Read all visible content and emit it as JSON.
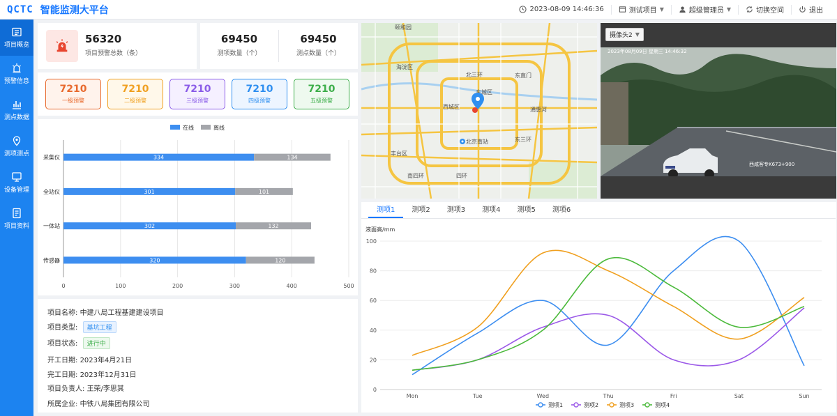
{
  "app": {
    "logo": "QCTC",
    "title": "智能监测大平台"
  },
  "topbar": {
    "datetime": "2023-08-09 14:46:36",
    "project_menu": "测试项目",
    "user_menu": "超级管理员",
    "switch_space": "切换空间",
    "logout": "退出"
  },
  "sidebar": {
    "items": [
      {
        "label": "项目概览",
        "icon": "dashboard-icon"
      },
      {
        "label": "预警信息",
        "icon": "alarm-icon"
      },
      {
        "label": "测点数据",
        "icon": "bar-chart-icon"
      },
      {
        "label": "测项测点",
        "icon": "location-icon"
      },
      {
        "label": "设备管理",
        "icon": "device-icon"
      },
      {
        "label": "项目资料",
        "icon": "document-icon"
      }
    ]
  },
  "stats": {
    "warning_total": {
      "value": "56320",
      "label": "项目预警总数（条）"
    },
    "item_count": {
      "value": "69450",
      "label": "测项数量（个）"
    },
    "point_count": {
      "value": "69450",
      "label": "测点数量（个）"
    }
  },
  "alarm_levels": [
    {
      "value": "7210",
      "label": "一级预警",
      "color": "#e8692d",
      "bg": "#fff3ec"
    },
    {
      "value": "7210",
      "label": "二级预警",
      "color": "#f0a020",
      "bg": "#fff8ea"
    },
    {
      "value": "7210",
      "label": "三级预警",
      "color": "#8a5ce8",
      "bg": "#f5f0ff"
    },
    {
      "value": "7210",
      "label": "四级预警",
      "color": "#2f8ff0",
      "bg": "#edf5ff"
    },
    {
      "value": "7210",
      "label": "五级预警",
      "color": "#3dae4a",
      "bg": "#eef9ef"
    }
  ],
  "device_chart": {
    "chart_data": {
      "type": "bar",
      "orientation": "horizontal",
      "stacked": true,
      "categories": [
        "采集仪",
        "全站仪",
        "一体站",
        "传感器"
      ],
      "series": [
        {
          "name": "在线",
          "values": [
            334,
            301,
            302,
            320
          ],
          "color": "#3d8ef0"
        },
        {
          "name": "离线",
          "values": [
            134,
            101,
            132,
            120
          ],
          "color": "#a4a6ab"
        }
      ],
      "xlim": [
        0,
        500
      ],
      "xticks": [
        "0",
        "100",
        "200",
        "300",
        "400",
        "500"
      ],
      "legend": "top-center",
      "grid": true
    }
  },
  "project_info": {
    "name_label": "项目名称:",
    "name": "中建八局工程基建建设项目",
    "type_label": "项目类型:",
    "type": "基坑工程",
    "status_label": "项目状态:",
    "status": "进行中",
    "start_label": "开工日期:",
    "start": "2023年4月21日",
    "end_label": "完工日期:",
    "end": "2023年12月31日",
    "manager_label": "项目负责人:",
    "manager": "王荣/李思其",
    "company_label": "所属企业:",
    "company": "中铁八局集团有限公司"
  },
  "map": {
    "labels": [
      "颐和园",
      "海淀区",
      "北三环",
      "东城区",
      "西城区",
      "东直门",
      "通惠河",
      "北京南站",
      "丰台区",
      "南四环",
      "东三环",
      "四环"
    ]
  },
  "camera": {
    "selected": "摄像头2",
    "timestamp": "2023年08月09日 星期三 14:46:32",
    "caption": "西咸客专K673+900"
  },
  "trend": {
    "tabs": [
      "测项1",
      "测项2",
      "测项3",
      "测项4",
      "测项5",
      "测项6"
    ],
    "active_tab": 0,
    "chart_data": {
      "type": "line",
      "smooth": true,
      "ylabel": "液面高/mm",
      "ylim": [
        0,
        100
      ],
      "yticks": [
        "0",
        "20",
        "40",
        "60",
        "80",
        "100"
      ],
      "categories": [
        "Mon",
        "Tue",
        "Wed",
        "Thu",
        "Fri",
        "Sat",
        "Sun"
      ],
      "series": [
        {
          "name": "测项1",
          "values": [
            10,
            38,
            60,
            30,
            80,
            100,
            16
          ],
          "color": "#3d8ef0"
        },
        {
          "name": "测项2",
          "values": [
            13,
            20,
            42,
            50,
            20,
            20,
            55
          ],
          "color": "#9b59e8"
        },
        {
          "name": "测项3",
          "values": [
            23,
            42,
            92,
            80,
            56,
            34,
            62
          ],
          "color": "#f0a020"
        },
        {
          "name": "测项4",
          "values": [
            13,
            20,
            40,
            88,
            69,
            42,
            56
          ],
          "color": "#4cba3c"
        }
      ],
      "legend": "bottom-center",
      "grid": true
    }
  }
}
